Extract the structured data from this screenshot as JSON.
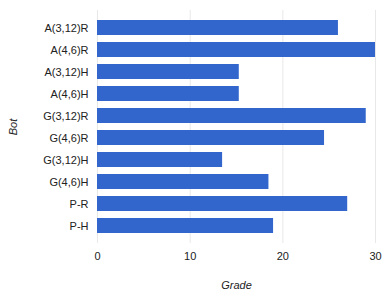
{
  "chart_data": {
    "type": "bar",
    "orientation": "horizontal",
    "categories": [
      "A(3,12)R",
      "A(4,6)R",
      "A(3,12)H",
      "A(4,6)H",
      "G(3,12)R",
      "G(4,6)R",
      "G(3,12)H",
      "G(4,6)H",
      "P-R",
      "P-H"
    ],
    "values": [
      26,
      30,
      15.3,
      15.3,
      29,
      24.5,
      13.5,
      18.5,
      27,
      19
    ],
    "color": "#3366cc",
    "x_label": "Grade",
    "y_label": "Bot",
    "xlim": [
      0,
      30
    ],
    "xticks": [
      0,
      10,
      20,
      30
    ],
    "grid": true
  }
}
